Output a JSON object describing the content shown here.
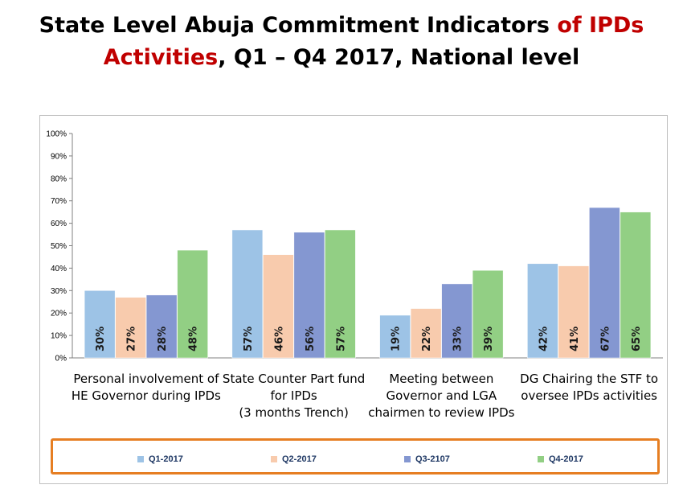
{
  "title": {
    "part1": "State Level Abuja Commitment Indicators ",
    "part2": "of IPDs",
    "part3": "Activities",
    "part4": ", Q1 – Q4 2017, National level"
  },
  "colors": {
    "title_accent": "#c00000",
    "legend_border": "#e67e22",
    "Q1-2017": "#9dc3e6",
    "Q2-2017": "#f8cbad",
    "Q3-2107": "#8497d1",
    "Q4-2017": "#92cf84"
  },
  "chart_data": {
    "type": "bar",
    "categories": [
      [
        "Personal involvement of",
        "HE Governor during IPDs"
      ],
      [
        "State Counter Part fund",
        "for IPDs",
        "(3 months Trench)"
      ],
      [
        "Meeting between",
        "Governor and LGA",
        "chairmen to review IPDs"
      ],
      [
        "DG Chairing the STF to",
        "oversee IPDs  activities"
      ]
    ],
    "series": [
      {
        "name": "Q1-2017",
        "values": [
          30,
          57,
          19,
          42
        ],
        "labels": [
          "30%",
          "57%",
          "19%",
          "42%"
        ]
      },
      {
        "name": "Q2-2017",
        "values": [
          27,
          46,
          22,
          41
        ],
        "labels": [
          "27%",
          "46%",
          "22%",
          "41%"
        ]
      },
      {
        "name": "Q3-2107",
        "values": [
          28,
          56,
          33,
          67
        ],
        "labels": [
          "28%",
          "56%",
          "33%",
          "67%"
        ]
      },
      {
        "name": "Q4-2017",
        "values": [
          48,
          57,
          39,
          65
        ],
        "labels": [
          "48%",
          "57%",
          "39%",
          "65%"
        ]
      }
    ],
    "ylim": [
      0,
      100
    ],
    "yticks": [
      "0%",
      "10%",
      "20%",
      "30%",
      "40%",
      "50%",
      "60%",
      "70%",
      "80%",
      "90%",
      "100%"
    ],
    "grid": false,
    "legend_position": "bottom"
  }
}
